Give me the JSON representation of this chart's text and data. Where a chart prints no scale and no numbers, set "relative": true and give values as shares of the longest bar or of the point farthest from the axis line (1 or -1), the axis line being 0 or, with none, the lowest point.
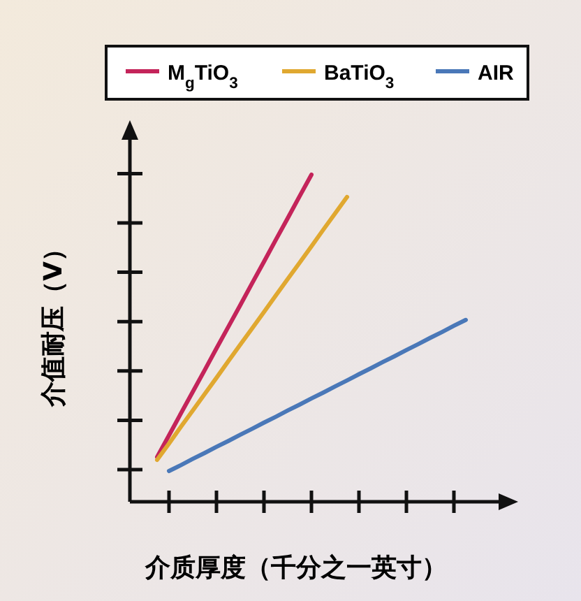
{
  "chart_data": {
    "type": "line",
    "relative": true,
    "xlabel": "介质厚度（千分之一英寸）",
    "ylabel": "介值耐压（V）",
    "legend": "top",
    "categories": [
      null,
      null,
      null,
      null,
      null,
      null,
      null,
      null,
      null,
      null,
      null,
      null,
      null,
      null,
      null,
      null,
      null,
      null,
      null,
      null,
      null,
      null,
      null,
      null,
      null,
      null,
      null,
      null
    ],
    "series": [
      {
        "name": "M$_{g}$TiO$_{3}$",
        "color": "#c4245a",
        "values": [
          null,
          0.137,
          0.203,
          0.27,
          0.336,
          0.402,
          0.469,
          0.535,
          0.601,
          0.668,
          0.734,
          0.801,
          0.867,
          0.934,
          1,
          null,
          null,
          null,
          null,
          null,
          null,
          null,
          null,
          null,
          null,
          null,
          null,
          null
        ]
      },
      {
        "name": "BaTiO$_{3}$",
        "color": "#e0a830",
        "values": [
          null,
          0.128,
          0.178,
          0.229,
          0.279,
          0.329,
          0.379,
          0.43,
          0.48,
          0.53,
          0.58,
          0.631,
          0.681,
          0.731,
          0.781,
          0.832,
          0.882,
          0.932,
          null,
          null,
          null,
          null,
          null,
          null,
          null,
          null,
          null,
          null
        ]
      },
      {
        "name": "AIR",
        "color": "#4a78b8",
        "values": [
          null,
          null,
          0.094,
          0.112,
          0.131,
          0.149,
          0.168,
          0.186,
          0.205,
          0.223,
          0.242,
          0.26,
          0.279,
          0.297,
          0.316,
          0.334,
          0.353,
          0.371,
          0.39,
          0.408,
          0.427,
          0.445,
          0.464,
          0.482,
          0.501,
          0.519,
          0.538,
          0.556
        ]
      }
    ]
  }
}
